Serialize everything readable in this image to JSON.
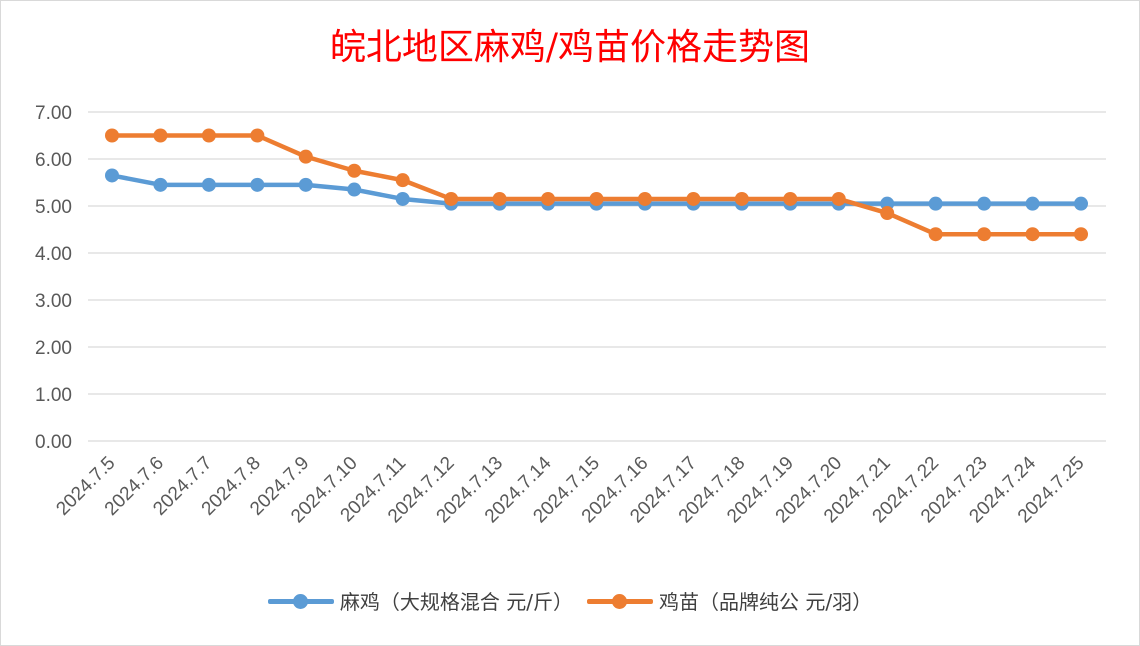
{
  "chart_data": {
    "type": "line",
    "title": "皖北地区麻鸡/鸡苗价格走势图",
    "categories": [
      "2024.7.5",
      "2024.7.6",
      "2024.7.7",
      "2024.7.8",
      "2024.7.9",
      "2024.7.10",
      "2024.7.11",
      "2024.7.12",
      "2024.7.13",
      "2024.7.14",
      "2024.7.15",
      "2024.7.16",
      "2024.7.17",
      "2024.7.18",
      "2024.7.19",
      "2024.7.20",
      "2024.7.21",
      "2024.7.22",
      "2024.7.23",
      "2024.7.24",
      "2024.7.25"
    ],
    "series": [
      {
        "name": "麻鸡（大规格混合 元/斤）",
        "color": "#5b9bd5",
        "values": [
          5.65,
          5.45,
          5.45,
          5.45,
          5.45,
          5.35,
          5.15,
          5.05,
          5.05,
          5.05,
          5.05,
          5.05,
          5.05,
          5.05,
          5.05,
          5.05,
          5.05,
          5.05,
          5.05,
          5.05,
          5.05
        ]
      },
      {
        "name": "鸡苗（品牌纯公 元/羽）",
        "color": "#ed7d31",
        "values": [
          6.5,
          6.5,
          6.5,
          6.5,
          6.05,
          5.75,
          5.55,
          5.15,
          5.15,
          5.15,
          5.15,
          5.15,
          5.15,
          5.15,
          5.15,
          5.15,
          4.85,
          4.4,
          4.4,
          4.4,
          4.4
        ]
      }
    ],
    "yticks": [
      "0.00",
      "1.00",
      "2.00",
      "3.00",
      "4.00",
      "5.00",
      "6.00",
      "7.00"
    ],
    "ylim": [
      0,
      7
    ],
    "grid": true,
    "legend": "bottom"
  }
}
